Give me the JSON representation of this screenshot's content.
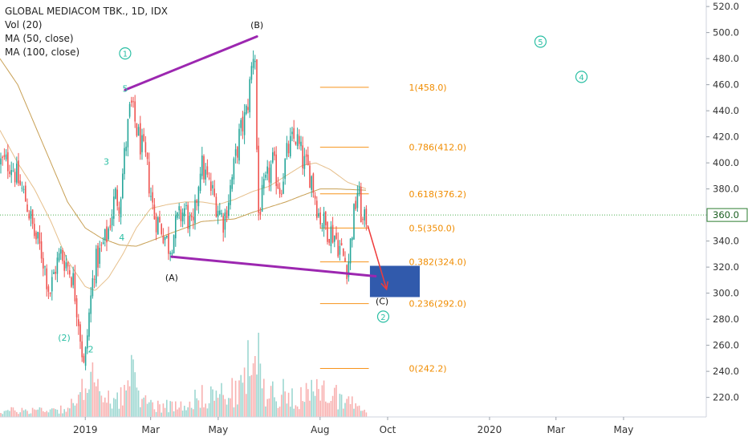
{
  "legend": {
    "title": "GLOBAL MEDIACOM TBK., 1D, IDX",
    "vol": "Vol (20)",
    "ma50": "MA (50, close)",
    "ma100": "MA (100, close)"
  },
  "chart_data": {
    "type": "candlestick",
    "symbol": "GLOBAL MEDIACOM TBK.",
    "interval": "1D",
    "exchange": "IDX",
    "ylim": [
      205,
      525
    ],
    "y_ticks": [
      220,
      240,
      260,
      280,
      300,
      320,
      340,
      360,
      380,
      400,
      420,
      440,
      460,
      480,
      500,
      520
    ],
    "x_ticks": [
      "2019",
      "Mar",
      "May",
      "Aug",
      "Oct",
      "2020",
      "Mar",
      "May"
    ],
    "last_price": "360.0",
    "last_price_value": 360,
    "price_path": [
      [
        "2018-10-26",
        400
      ],
      [
        "2018-11-02",
        385
      ],
      [
        "2018-11-09",
        370
      ],
      [
        "2018-11-16",
        345
      ],
      [
        "2018-11-23",
        330
      ],
      [
        "2018-11-30",
        300
      ],
      [
        "2018-12-05",
        320
      ],
      [
        "2018-12-10",
        330
      ],
      [
        "2018-12-17",
        320
      ],
      [
        "2018-12-21",
        310
      ],
      [
        "2018-12-26",
        280
      ],
      [
        "2018-12-31",
        240
      ],
      [
        "2019-01-04",
        280
      ],
      [
        "2019-01-09",
        320
      ],
      [
        "2019-01-14",
        330
      ],
      [
        "2019-01-21",
        345
      ],
      [
        "2019-01-28",
        375
      ],
      [
        "2019-02-01",
        370
      ],
      [
        "2019-02-06",
        410
      ],
      [
        "2019-02-11",
        445
      ],
      [
        "2019-02-18",
        420
      ],
      [
        "2019-02-25",
        400
      ],
      [
        "2019-03-04",
        360
      ],
      [
        "2019-03-11",
        350
      ],
      [
        "2019-03-18",
        335
      ],
      [
        "2019-03-25",
        355
      ],
      [
        "2019-04-01",
        365
      ],
      [
        "2019-04-08",
        345
      ],
      [
        "2019-04-15",
        400
      ],
      [
        "2019-04-22",
        385
      ],
      [
        "2019-04-29",
        370
      ],
      [
        "2019-05-06",
        355
      ],
      [
        "2019-05-13",
        385
      ],
      [
        "2019-05-20",
        420
      ],
      [
        "2019-05-27",
        440
      ],
      [
        "2019-06-03",
        495
      ],
      [
        "2019-06-06",
        360
      ],
      [
        "2019-06-12",
        380
      ],
      [
        "2019-06-19",
        400
      ],
      [
        "2019-06-26",
        380
      ],
      [
        "2019-07-03",
        410
      ],
      [
        "2019-07-10",
        420
      ],
      [
        "2019-07-17",
        400
      ],
      [
        "2019-07-24",
        390
      ],
      [
        "2019-07-31",
        360
      ],
      [
        "2019-08-07",
        350
      ],
      [
        "2019-08-14",
        345
      ],
      [
        "2019-08-21",
        330
      ],
      [
        "2019-08-26",
        320
      ],
      [
        "2019-08-30",
        350
      ],
      [
        "2019-09-04",
        380
      ],
      [
        "2019-09-09",
        350
      ],
      [
        "2019-09-12",
        360
      ]
    ],
    "ma50": [
      [
        "2018-10-16",
        425
      ],
      [
        "2018-11-01",
        400
      ],
      [
        "2018-11-16",
        380
      ],
      [
        "2018-12-01",
        355
      ],
      [
        "2018-12-16",
        325
      ],
      [
        "2019-01-01",
        305
      ],
      [
        "2019-01-10",
        302
      ],
      [
        "2019-01-22",
        312
      ],
      [
        "2019-02-04",
        330
      ],
      [
        "2019-02-16",
        350
      ],
      [
        "2019-03-01",
        365
      ],
      [
        "2019-03-16",
        368
      ],
      [
        "2019-04-01",
        370
      ],
      [
        "2019-04-16",
        370
      ],
      [
        "2019-05-01",
        368
      ],
      [
        "2019-05-16",
        372
      ],
      [
        "2019-06-01",
        378
      ],
      [
        "2019-06-16",
        382
      ],
      [
        "2019-07-01",
        390
      ],
      [
        "2019-07-16",
        398
      ],
      [
        "2019-07-28",
        400
      ],
      [
        "2019-08-10",
        395
      ],
      [
        "2019-08-26",
        385
      ],
      [
        "2019-09-12",
        380
      ]
    ],
    "ma100": [
      [
        "2018-10-16",
        480
      ],
      [
        "2018-11-01",
        460
      ],
      [
        "2018-11-16",
        430
      ],
      [
        "2018-12-01",
        400
      ],
      [
        "2018-12-16",
        370
      ],
      [
        "2019-01-01",
        350
      ],
      [
        "2019-01-16",
        342
      ],
      [
        "2019-02-01",
        337
      ],
      [
        "2019-02-16",
        336
      ],
      [
        "2019-03-01",
        340
      ],
      [
        "2019-03-16",
        345
      ],
      [
        "2019-04-01",
        350
      ],
      [
        "2019-04-16",
        355
      ],
      [
        "2019-05-01",
        356
      ],
      [
        "2019-05-16",
        357
      ],
      [
        "2019-06-01",
        362
      ],
      [
        "2019-06-16",
        366
      ],
      [
        "2019-07-01",
        370
      ],
      [
        "2019-07-16",
        375
      ],
      [
        "2019-08-01",
        380
      ],
      [
        "2019-08-16",
        380
      ],
      [
        "2019-09-12",
        379
      ]
    ],
    "volume_profile": [
      [
        "2018-10-16",
        0.08
      ],
      [
        "2018-11-15",
        0.1
      ],
      [
        "2018-12-15",
        0.12
      ],
      [
        "2018-12-28",
        0.25
      ],
      [
        "2019-01-04",
        0.9
      ],
      [
        "2019-01-15",
        0.2
      ],
      [
        "2019-02-07",
        0.35
      ],
      [
        "2019-02-12",
        0.55
      ],
      [
        "2019-02-25",
        0.2
      ],
      [
        "2019-03-20",
        0.15
      ],
      [
        "2019-04-20",
        0.3
      ],
      [
        "2019-05-20",
        0.35
      ],
      [
        "2019-06-04",
        1.0
      ],
      [
        "2019-06-10",
        0.4
      ],
      [
        "2019-07-10",
        0.3
      ],
      [
        "2019-08-10",
        0.35
      ],
      [
        "2019-08-30",
        0.2
      ],
      [
        "2019-09-12",
        0.15
      ]
    ],
    "fibonacci": [
      {
        "label": "1(458.0)",
        "value": 458.0
      },
      {
        "label": "0.786(412.0)",
        "value": 412.0
      },
      {
        "label": "0.618(376.2)",
        "value": 376.2
      },
      {
        "label": "0.5(350.0)",
        "value": 350.0
      },
      {
        "label": "0.382(324.0)",
        "value": 324.0
      },
      {
        "label": "0.236(292.0)",
        "value": 292.0
      },
      {
        "label": "0(242.2)",
        "value": 242.2
      }
    ],
    "fib_start": "2019-08-01",
    "fib_end": "2019-09-14",
    "trendlines": [
      {
        "from": [
          "2019-02-06",
          456
        ],
        "to": [
          "2019-06-05",
          497
        ]
      },
      {
        "from": [
          "2019-03-20",
          328
        ],
        "to": [
          "2019-09-20",
          313
        ]
      }
    ],
    "projection_arrow": {
      "from": [
        "2019-09-13",
        352
      ],
      "to": [
        "2019-09-30",
        303
      ]
    },
    "target_zone": {
      "x0": "2019-09-15",
      "x1": "2019-10-30",
      "y0": 297,
      "y1": 321
    },
    "wave_labels": [
      {
        "text": "1",
        "circled": true,
        "x": "2019-02-06",
        "y": 484
      },
      {
        "text": "5",
        "circled": false,
        "x": "2019-02-06",
        "y": 457
      },
      {
        "text": "3",
        "circled": false,
        "x": "2019-01-20",
        "y": 401
      },
      {
        "text": "4",
        "circled": false,
        "x": "2019-02-03",
        "y": 343
      },
      {
        "text": "(2)",
        "circled": false,
        "x": "2018-12-13",
        "y": 266
      },
      {
        "text": "2",
        "circled": false,
        "x": "2019-01-06",
        "y": 257
      },
      {
        "text": "(A)",
        "circled": false,
        "x": "2019-03-20",
        "y": 312
      },
      {
        "text": "(B)",
        "circled": false,
        "x": "2019-06-05",
        "y": 506
      },
      {
        "text": "(C)",
        "circled": false,
        "x": "2019-09-26",
        "y": 294
      },
      {
        "text": "2",
        "circled": true,
        "x": "2019-09-27",
        "y": 282
      },
      {
        "text": "5",
        "circled": true,
        "x": "2020-02-16",
        "y": 493
      },
      {
        "text": "4",
        "circled": true,
        "x": "2020-03-24",
        "y": 466
      }
    ]
  }
}
